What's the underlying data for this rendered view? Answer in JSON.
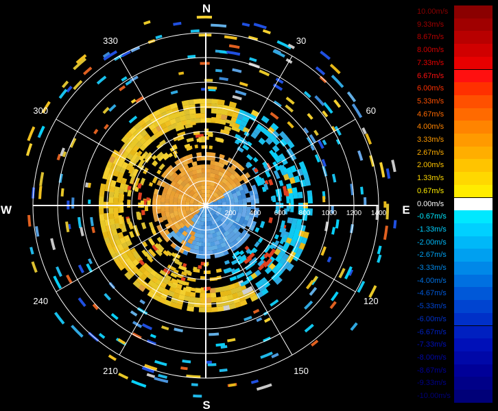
{
  "compass": {
    "north": "N",
    "south": "S",
    "east": "E",
    "west": "W"
  },
  "chart_data": {
    "type": "polar",
    "radial_ticks": [
      "200",
      "400",
      "600",
      "800",
      "1000",
      "1200",
      "1400"
    ],
    "azimuth_labels": [
      "30",
      "60",
      "120",
      "150",
      "210",
      "240",
      "300",
      "330"
    ],
    "legend": [
      {
        "label": "10.00m/s",
        "color": "#8b0000"
      },
      {
        "label": "9.33m/s",
        "color": "#a00000"
      },
      {
        "label": "8.67m/s",
        "color": "#b80000"
      },
      {
        "label": "8.00m/s",
        "color": "#d00000"
      },
      {
        "label": "7.33m/s",
        "color": "#e80000"
      },
      {
        "label": "6.67m/s",
        "color": "#ff1010"
      },
      {
        "label": "6.00m/s",
        "color": "#ff3000"
      },
      {
        "label": "5.33m/s",
        "color": "#ff5000"
      },
      {
        "label": "4.67m/s",
        "color": "#ff6a00"
      },
      {
        "label": "4.00m/s",
        "color": "#ff8400"
      },
      {
        "label": "3.33m/s",
        "color": "#ff9a00"
      },
      {
        "label": "2.67m/s",
        "color": "#ffae00"
      },
      {
        "label": "2.00m/s",
        "color": "#ffc400"
      },
      {
        "label": "1.33m/s",
        "color": "#ffd800"
      },
      {
        "label": "0.67m/s",
        "color": "#ffec00"
      },
      {
        "label": "0.00m/s",
        "color": "#ffffff"
      },
      {
        "label": "-0.67m/s",
        "color": "#00e8ff"
      },
      {
        "label": "-1.33m/s",
        "color": "#00d0ff"
      },
      {
        "label": "-2.00m/s",
        "color": "#00b8f8"
      },
      {
        "label": "-2.67m/s",
        "color": "#00a0f0"
      },
      {
        "label": "-3.33m/s",
        "color": "#0088e8"
      },
      {
        "label": "-4.00m/s",
        "color": "#0070e0"
      },
      {
        "label": "-4.67m/s",
        "color": "#0058d8"
      },
      {
        "label": "-5.33m/s",
        "color": "#0044d0"
      },
      {
        "label": "-6.00m/s",
        "color": "#0030c8"
      },
      {
        "label": "-6.67m/s",
        "color": "#0020c0"
      },
      {
        "label": "-7.33m/s",
        "color": "#0010b8"
      },
      {
        "label": "-8.00m/s",
        "color": "#0008a8"
      },
      {
        "label": "-8.67m/s",
        "color": "#000098"
      },
      {
        "label": "-9.33m/s",
        "color": "#000088"
      },
      {
        "label": "-10.00m/s",
        "color": "#000078"
      }
    ]
  }
}
